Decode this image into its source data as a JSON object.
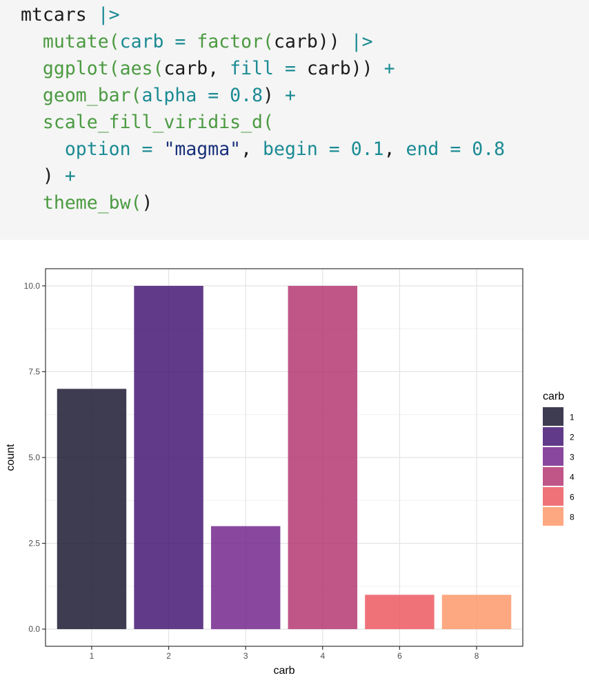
{
  "code": {
    "lines": [
      [
        {
          "t": "mtcars ",
          "c": "plain"
        },
        {
          "t": "|>",
          "c": "op"
        }
      ],
      [
        {
          "t": "  ",
          "c": "plain"
        },
        {
          "t": "mutate(",
          "c": "fn"
        },
        {
          "t": "carb ",
          "c": "op"
        },
        {
          "t": "= ",
          "c": "op"
        },
        {
          "t": "factor(",
          "c": "fn"
        },
        {
          "t": "carb)) ",
          "c": "plain"
        },
        {
          "t": "|>",
          "c": "op"
        }
      ],
      [
        {
          "t": "  ",
          "c": "plain"
        },
        {
          "t": "ggplot(",
          "c": "fn"
        },
        {
          "t": "aes(",
          "c": "fn"
        },
        {
          "t": "carb, ",
          "c": "plain"
        },
        {
          "t": "fill ",
          "c": "op"
        },
        {
          "t": "= ",
          "c": "op"
        },
        {
          "t": "carb)) ",
          "c": "plain"
        },
        {
          "t": "+",
          "c": "op"
        }
      ],
      [
        {
          "t": "  ",
          "c": "plain"
        },
        {
          "t": "geom_bar(",
          "c": "fn"
        },
        {
          "t": "alpha ",
          "c": "op"
        },
        {
          "t": "= ",
          "c": "op"
        },
        {
          "t": "0.8",
          "c": "num"
        },
        {
          "t": ") ",
          "c": "plain"
        },
        {
          "t": "+",
          "c": "op"
        }
      ],
      [
        {
          "t": "  ",
          "c": "plain"
        },
        {
          "t": "scale_fill_viridis_d(",
          "c": "fn"
        }
      ],
      [
        {
          "t": "    ",
          "c": "plain"
        },
        {
          "t": "option ",
          "c": "op"
        },
        {
          "t": "= ",
          "c": "op"
        },
        {
          "t": "\"magma\"",
          "c": "str"
        },
        {
          "t": ", ",
          "c": "plain"
        },
        {
          "t": "begin ",
          "c": "op"
        },
        {
          "t": "= ",
          "c": "op"
        },
        {
          "t": "0.1",
          "c": "num"
        },
        {
          "t": ", ",
          "c": "plain"
        },
        {
          "t": "end ",
          "c": "op"
        },
        {
          "t": "= ",
          "c": "op"
        },
        {
          "t": "0.8",
          "c": "num"
        }
      ],
      [
        {
          "t": "  ",
          "c": "plain"
        },
        {
          "t": ") ",
          "c": "plain"
        },
        {
          "t": "+",
          "c": "op"
        }
      ],
      [
        {
          "t": "  ",
          "c": "plain"
        },
        {
          "t": "theme_bw(",
          "c": "fn"
        },
        {
          "t": ")",
          "c": "plain"
        }
      ]
    ]
  },
  "chart_data": {
    "type": "bar",
    "categories": [
      "1",
      "2",
      "3",
      "4",
      "6",
      "8"
    ],
    "values": [
      7,
      10,
      3,
      10,
      1,
      1
    ],
    "colors": [
      "#0e0b26",
      "#3a0a6c",
      "#6b1a86",
      "#b02b6a",
      "#ec4f58",
      "#fd9262"
    ],
    "bar_alpha": 0.8,
    "xlabel": "carb",
    "ylabel": "count",
    "ylim": [
      -0.5,
      10.5
    ],
    "yticks": [
      0,
      2.5,
      5,
      7.5,
      10
    ],
    "ytick_labels": [
      "0.0",
      "2.5",
      "5.0",
      "7.5",
      "10.0"
    ],
    "grid": true,
    "legend": {
      "title": "carb",
      "position": "right",
      "labels": [
        "1",
        "2",
        "3",
        "4",
        "6",
        "8"
      ]
    }
  }
}
